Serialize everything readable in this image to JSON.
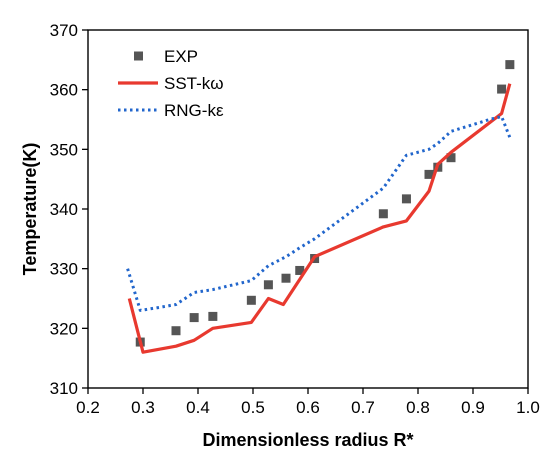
{
  "chart_data": {
    "type": "scatter",
    "title": "",
    "xlabel": "Dimensionless radius R*",
    "ylabel": "Temperature(K)",
    "xlim": [
      0.2,
      1.0
    ],
    "ylim": [
      310,
      370
    ],
    "xticks": [
      "0.2",
      "0.3",
      "0.4",
      "0.5",
      "0.6",
      "0.7",
      "0.8",
      "0.9",
      "1.0"
    ],
    "yticks": [
      "310",
      "320",
      "330",
      "340",
      "350",
      "360",
      "370"
    ],
    "grid": false,
    "legend_position": "top-left",
    "series": [
      {
        "name": "EXP",
        "kind": "markers",
        "marker": "square",
        "color": "#555555",
        "x": [
          0.295,
          0.36,
          0.393,
          0.427,
          0.497,
          0.528,
          0.56,
          0.585,
          0.612,
          0.737,
          0.779,
          0.82,
          0.836,
          0.86,
          0.952,
          0.967
        ],
        "y": [
          317.7,
          319.6,
          321.8,
          322.0,
          324.7,
          327.3,
          328.4,
          329.7,
          331.7,
          339.2,
          341.7,
          345.8,
          347.0,
          348.6,
          360.1,
          364.2
        ]
      },
      {
        "name": "SST-kω",
        "kind": "line",
        "style": "solid",
        "color": "#e8392f",
        "x": [
          0.275,
          0.3,
          0.36,
          0.393,
          0.427,
          0.497,
          0.528,
          0.555,
          0.612,
          0.737,
          0.779,
          0.82,
          0.836,
          0.86,
          0.952,
          0.967
        ],
        "y": [
          325.0,
          316.0,
          317.0,
          318.0,
          320.0,
          321.0,
          325.0,
          324.0,
          332.0,
          337.0,
          338.0,
          343.0,
          347.5,
          349.5,
          356.0,
          361.0
        ]
      },
      {
        "name": "RNG-kε",
        "kind": "line",
        "style": "dotted",
        "color": "#2266cc",
        "x": [
          0.272,
          0.295,
          0.33,
          0.36,
          0.393,
          0.427,
          0.497,
          0.528,
          0.56,
          0.585,
          0.612,
          0.737,
          0.779,
          0.82,
          0.836,
          0.86,
          0.93,
          0.952,
          0.967
        ],
        "y": [
          330.0,
          323.0,
          323.5,
          324.0,
          326.0,
          326.5,
          328.0,
          330.5,
          332.0,
          333.5,
          335.0,
          343.5,
          349.0,
          350.0,
          351.0,
          353.0,
          355.0,
          355.5,
          352.0
        ]
      }
    ]
  }
}
